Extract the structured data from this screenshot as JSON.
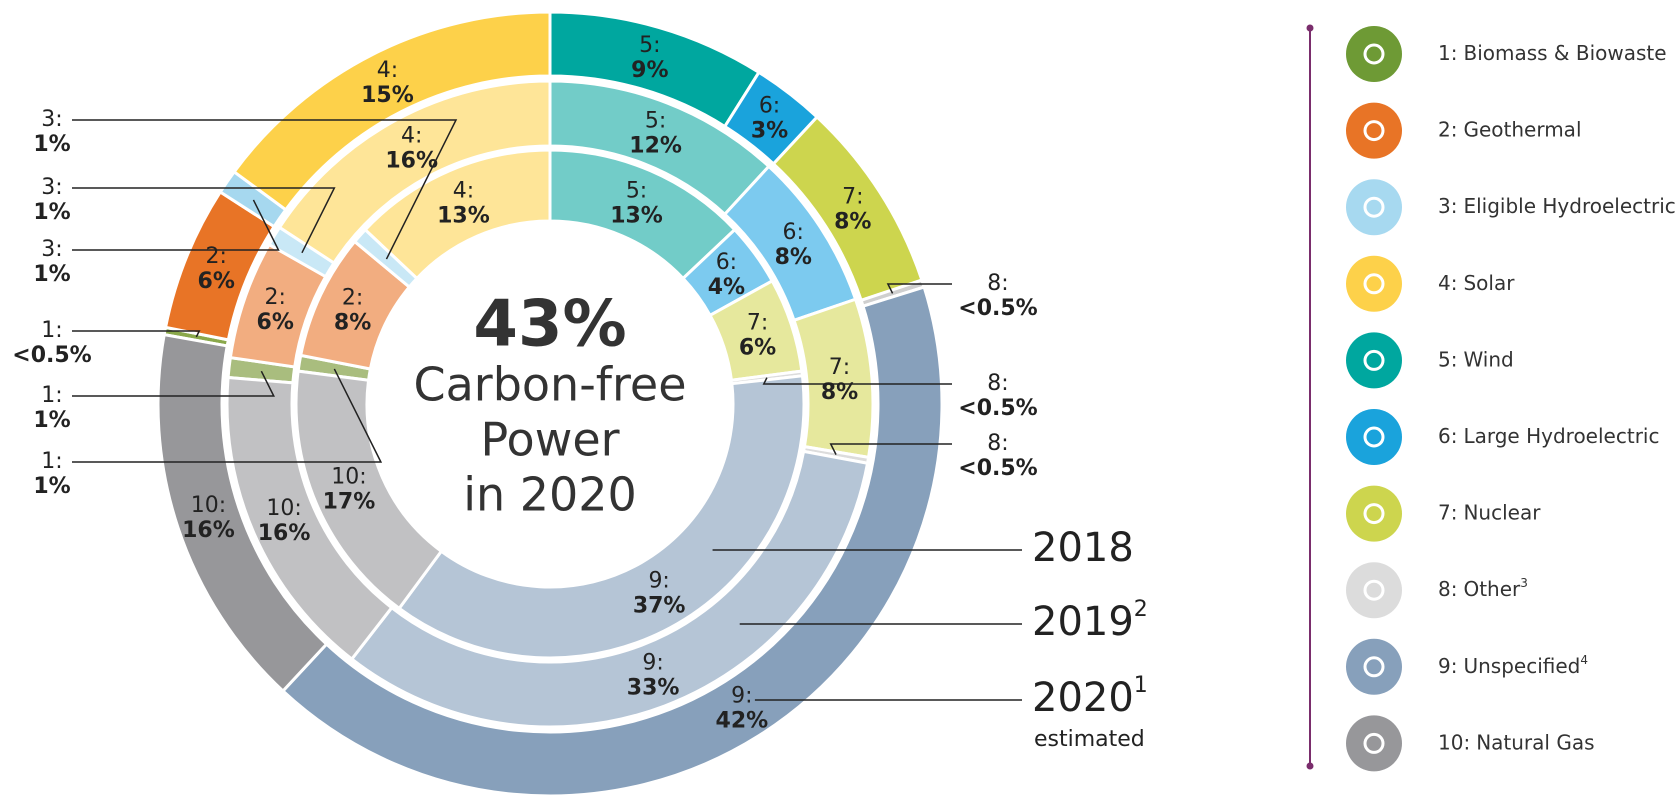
{
  "chart_data": {
    "type": "pie",
    "center_title": "43%",
    "center_lines": [
      "Carbon-free",
      "Power",
      "in 2020"
    ],
    "category_codes": [
      "1:",
      "2:",
      "3:",
      "4:",
      "5:",
      "6:",
      "7:",
      "8:",
      "9:",
      "10:"
    ],
    "categories": [
      "Biomass & Biowaste",
      "Geothermal",
      "Eligible Hydroelectric",
      "Solar",
      "Wind",
      "Large Hydroelectric",
      "Nuclear",
      "Other",
      "Unspecified",
      "Natural Gas"
    ],
    "category_footnotes": [
      null,
      null,
      null,
      null,
      null,
      null,
      null,
      "3",
      "4",
      null
    ],
    "legend_colors": [
      "#6e9a35",
      "#e87426",
      "#a7d9f0",
      "#fdd14a",
      "#00a79f",
      "#1aa3dc",
      "#cdd54e",
      "#dcdcdc",
      "#87a0bb",
      "#97979a"
    ],
    "series": [
      {
        "name": "2018",
        "colors": [
          "#a9bd7e",
          "#f2ad80",
          "#c9e8f6",
          "#fee598",
          "#72ccc8",
          "#7ccaef",
          "#e6e89d",
          "#dcdcdc",
          "#b5c5d6",
          "#c1c1c3"
        ],
        "values": [
          1,
          8,
          1,
          13,
          13,
          4,
          6,
          0.3,
          37,
          17
        ],
        "value_labels": [
          "1%",
          "8%",
          "1%",
          "13%",
          "13%",
          "4%",
          "6%",
          "<0.5%",
          "37%",
          "17%"
        ]
      },
      {
        "name": "2019",
        "footnote": "2",
        "colors": [
          "#a9bd7e",
          "#f2ad80",
          "#c9e8f6",
          "#fee598",
          "#72ccc8",
          "#7ccaef",
          "#e6e89d",
          "#dcdcdc",
          "#b5c5d6",
          "#c1c1c3"
        ],
        "values": [
          1,
          6,
          1,
          16,
          12,
          8,
          8,
          0.3,
          33,
          16
        ],
        "value_labels": [
          "1%",
          "6%",
          "1%",
          "16%",
          "12%",
          "8%",
          "8%",
          "<0.5%",
          "33%",
          "16%"
        ]
      },
      {
        "name": "2020",
        "footnote": "1",
        "note": "estimated",
        "colors": [
          "#8aa84b",
          "#e87426",
          "#a6d8ef",
          "#fdd14a",
          "#00a79f",
          "#1aa3dc",
          "#cdd54e",
          "#cfcfcf",
          "#87a0bb",
          "#97979a"
        ],
        "values": [
          0.3,
          6,
          1,
          15,
          9,
          3,
          8,
          0.3,
          42,
          16
        ],
        "value_labels": [
          "<0.5%",
          "6%",
          "1%",
          "15%",
          "9%",
          "3%",
          "8%",
          "<0.5%",
          "42%",
          "16%"
        ]
      }
    ]
  }
}
